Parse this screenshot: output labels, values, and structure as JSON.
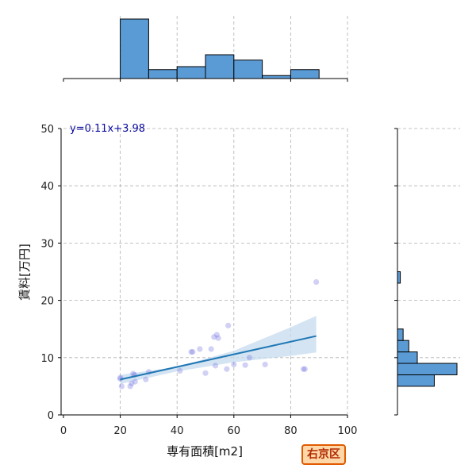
{
  "chart_data": {
    "type": "scatter",
    "xlabel": "専有面積[m2]",
    "ylabel": "賃料[万円]",
    "xlim": [
      0,
      100
    ],
    "ylim": [
      0,
      50
    ],
    "x_ticks": [
      0,
      20,
      40,
      60,
      80,
      100
    ],
    "y_ticks": [
      0,
      10,
      20,
      30,
      40,
      50
    ],
    "grid": true,
    "colors": {
      "points": "#6666dd",
      "regression_line": "#1f77b4",
      "ci_band": "#c6dbef",
      "hist_fill": "#5b9bd5",
      "grid": "#b0b0b0",
      "equation": "#0a0aa0"
    },
    "regression": {
      "equation": "y=0.11x+3.98",
      "slope": 0.11,
      "intercept": 3.98,
      "x_range": [
        20,
        89
      ],
      "ci_low": [
        [
          20,
          5.4
        ],
        [
          40,
          7.6
        ],
        [
          60,
          9.2
        ],
        [
          80,
          10.3
        ],
        [
          89,
          10.9
        ]
      ],
      "ci_high": [
        [
          20,
          7.0
        ],
        [
          40,
          8.4
        ],
        [
          60,
          11.2
        ],
        [
          80,
          15.3
        ],
        [
          89,
          17.3
        ]
      ]
    },
    "points": [
      {
        "x": 20,
        "y": 6.3
      },
      {
        "x": 20.5,
        "y": 5.0
      },
      {
        "x": 20,
        "y": 6.5
      },
      {
        "x": 23.5,
        "y": 5.0
      },
      {
        "x": 24,
        "y": 5.5
      },
      {
        "x": 24.5,
        "y": 7.2
      },
      {
        "x": 25,
        "y": 7.0
      },
      {
        "x": 25.2,
        "y": 5.8
      },
      {
        "x": 29,
        "y": 6.2
      },
      {
        "x": 30,
        "y": 7.5
      },
      {
        "x": 41,
        "y": 7.7
      },
      {
        "x": 45,
        "y": 11.0
      },
      {
        "x": 45.5,
        "y": 11.0
      },
      {
        "x": 48,
        "y": 11.5
      },
      {
        "x": 50,
        "y": 7.3
      },
      {
        "x": 52,
        "y": 11.5
      },
      {
        "x": 53,
        "y": 13.6
      },
      {
        "x": 53.5,
        "y": 8.6
      },
      {
        "x": 54,
        "y": 14.0
      },
      {
        "x": 54.5,
        "y": 13.4
      },
      {
        "x": 57.5,
        "y": 8.0
      },
      {
        "x": 58,
        "y": 15.6
      },
      {
        "x": 60,
        "y": 8.8
      },
      {
        "x": 64,
        "y": 8.7
      },
      {
        "x": 65.5,
        "y": 10.0
      },
      {
        "x": 71,
        "y": 8.8
      },
      {
        "x": 84.5,
        "y": 8.0
      },
      {
        "x": 85,
        "y": 8.0
      },
      {
        "x": 89,
        "y": 23.2
      }
    ],
    "x_histogram": {
      "bin_edges": [
        20,
        30,
        40,
        50,
        60,
        70,
        80,
        90
      ],
      "counts": [
        10,
        1.5,
        2,
        4,
        3.1,
        0.5,
        1.5
      ]
    },
    "y_histogram": {
      "bin_edges": [
        5,
        7,
        9,
        11,
        13,
        15,
        17,
        19,
        21,
        23,
        25
      ],
      "counts": [
        6.5,
        10.5,
        3.5,
        2,
        1,
        0,
        0,
        0,
        0,
        0.5
      ]
    }
  },
  "badge": {
    "label": "右京区",
    "color": "#e05a00"
  }
}
